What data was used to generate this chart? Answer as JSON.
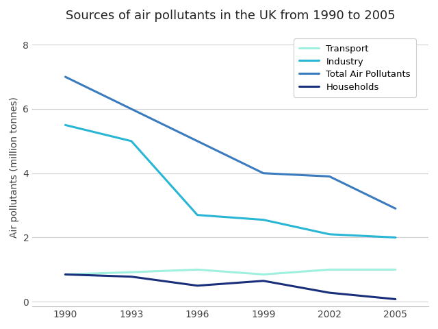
{
  "title": "Sources of air pollutants in the UK from 1990 to 2005",
  "ylabel": "Air pollutants (million tonnes)",
  "years": [
    1990,
    1993,
    1996,
    1999,
    2002,
    2005
  ],
  "series": [
    {
      "label": "Transport",
      "color": "#a0f0e0",
      "values": [
        0.85,
        0.92,
        1.0,
        0.85,
        1.0,
        1.0
      ]
    },
    {
      "label": "Industry",
      "color": "#29b6d4",
      "values": [
        5.5,
        5.0,
        2.7,
        2.55,
        2.1,
        2.0
      ]
    },
    {
      "label": "Total Air Pollutants",
      "color": "#3a7abf",
      "values": [
        7.0,
        6.0,
        5.0,
        4.0,
        3.9,
        2.9
      ]
    },
    {
      "label": "Households",
      "color": "#1a2f7a",
      "values": [
        0.85,
        0.78,
        0.5,
        0.65,
        0.28,
        0.08
      ]
    }
  ],
  "ylim": [
    -0.15,
    8.5
  ],
  "yticks": [
    0,
    2,
    4,
    6,
    8
  ],
  "xlim": [
    1988.5,
    2006.5
  ],
  "background_color": "#ffffff",
  "grid_color": "#d0d0d0",
  "title_fontsize": 13,
  "label_fontsize": 10,
  "tick_fontsize": 10,
  "linewidth": 2.2
}
